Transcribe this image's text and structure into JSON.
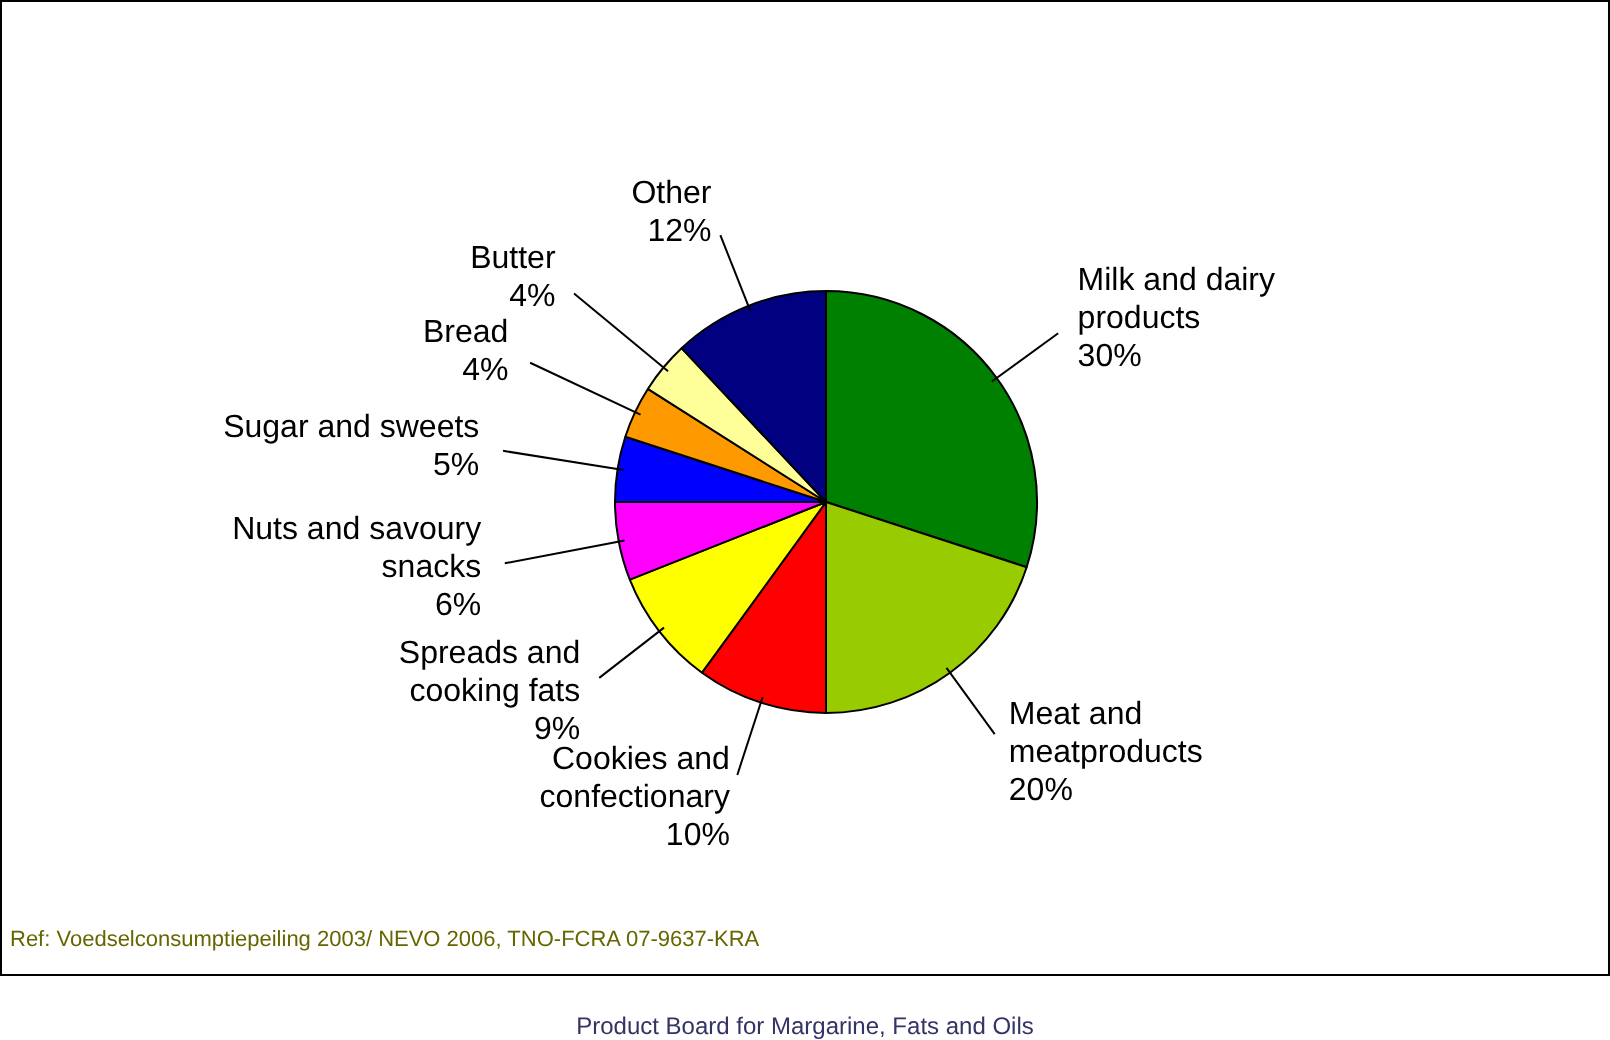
{
  "chart_data": {
    "type": "pie",
    "categories": [
      "Milk and dairy products",
      "Meat and meatproducts",
      "Cookies and confectionary",
      "Spreads and cooking fats",
      "Nuts and savoury snacks",
      "Sugar and sweets",
      "Bread",
      "Butter",
      "Other"
    ],
    "values": [
      30,
      20,
      10,
      9,
      6,
      5,
      4,
      4,
      12
    ],
    "value_labels": [
      "30%",
      "20%",
      "10%",
      "9%",
      "6%",
      "5%",
      "4%",
      "4%",
      "12%"
    ],
    "colors": [
      "#008000",
      "#99cc00",
      "#ff0000",
      "#ffff00",
      "#ff00ff",
      "#0000ff",
      "#ff9900",
      "#ffff99",
      "#000080"
    ],
    "legend": false,
    "annotations": [
      "Ref: Voedselconsumptiepeiling 2003/ NEVO 2006, TNO-FCRA 07-9637-KRA",
      "Product Board for Margarine, Fats and Oils"
    ]
  }
}
